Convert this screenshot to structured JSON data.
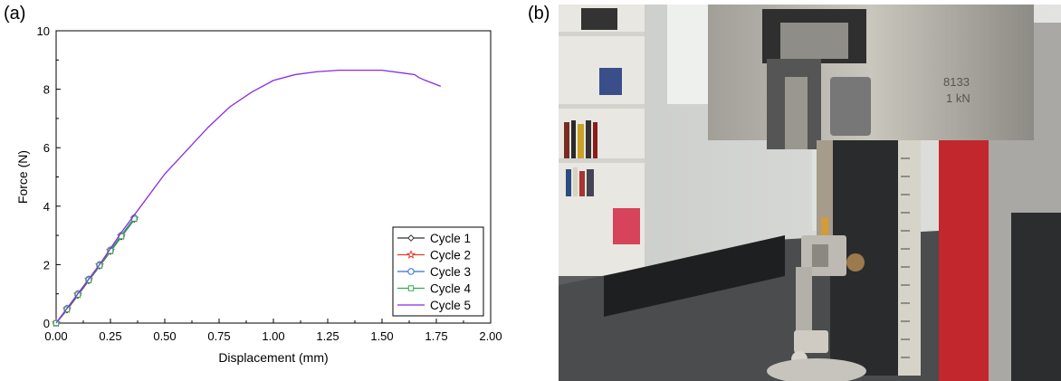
{
  "panels": {
    "a_label": "(a)",
    "b_label": "(b)"
  },
  "photo": {
    "plate_text": "8133",
    "plate_text_2": "1 kN"
  },
  "chart_data": {
    "type": "line",
    "xlabel": "Displacement (mm)",
    "ylabel": "Force (N)",
    "xlim": [
      0,
      2.0
    ],
    "ylim": [
      0,
      10
    ],
    "xticks": [
      "0.00",
      "0.25",
      "0.50",
      "0.75",
      "1.00",
      "1.25",
      "1.50",
      "1.75",
      "2.00"
    ],
    "yticks": [
      "0",
      "2",
      "4",
      "6",
      "8",
      "10"
    ],
    "legend_position": "lower-right",
    "series": [
      {
        "name": "Cycle 1",
        "color": "#333333",
        "marker": "diamond",
        "x": [
          0,
          0.05,
          0.1,
          0.15,
          0.2,
          0.25,
          0.3,
          0.36
        ],
        "y": [
          0,
          0.45,
          0.95,
          1.45,
          1.95,
          2.45,
          2.95,
          3.55
        ]
      },
      {
        "name": "Cycle 2",
        "color": "#e8392d",
        "marker": "star",
        "x": [
          0,
          0.05,
          0.1,
          0.15,
          0.2,
          0.25,
          0.3,
          0.36
        ],
        "y": [
          0,
          0.48,
          0.98,
          1.48,
          1.98,
          2.48,
          2.98,
          3.58
        ]
      },
      {
        "name": "Cycle 3",
        "color": "#2f6fd6",
        "marker": "circle",
        "x": [
          0,
          0.05,
          0.1,
          0.15,
          0.2,
          0.25,
          0.3,
          0.36
        ],
        "y": [
          0,
          0.5,
          1.0,
          1.5,
          2.0,
          2.5,
          3.0,
          3.6
        ]
      },
      {
        "name": "Cycle 4",
        "color": "#2faa4a",
        "marker": "square",
        "x": [
          0,
          0.05,
          0.1,
          0.15,
          0.2,
          0.25,
          0.3,
          0.36
        ],
        "y": [
          0,
          0.47,
          0.97,
          1.47,
          1.97,
          2.47,
          2.97,
          3.57
        ]
      },
      {
        "name": "Cycle 5",
        "color": "#8a2be2",
        "marker": "none",
        "x": [
          0,
          0.1,
          0.2,
          0.3,
          0.4,
          0.5,
          0.6,
          0.7,
          0.8,
          0.9,
          1.0,
          1.1,
          1.2,
          1.3,
          1.4,
          1.5,
          1.6,
          1.65,
          1.67,
          1.7,
          1.77
        ],
        "y": [
          0,
          1.0,
          2.0,
          3.1,
          4.1,
          5.1,
          5.9,
          6.7,
          7.4,
          7.9,
          8.3,
          8.5,
          8.6,
          8.65,
          8.65,
          8.65,
          8.55,
          8.5,
          8.4,
          8.3,
          8.1
        ]
      }
    ]
  }
}
